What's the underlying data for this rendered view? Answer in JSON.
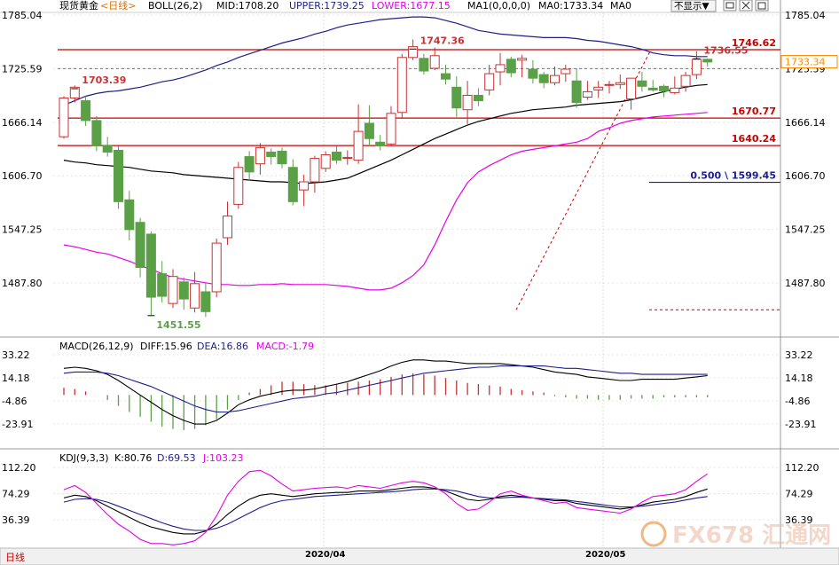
{
  "header": {
    "symbol": "现货黄金",
    "period": "<日线>",
    "boll_label": "BOLL(26,2)",
    "mid": "MID:1708.20",
    "upper": "UPPER:1739.25",
    "lower": "LOWER:1677.15",
    "ma1": "MA1(0,0,0,0)",
    "ma0": "MA0:1733.34",
    "ma0b": "MA0",
    "display_toggle": "不显示▼",
    "window_icons": [
      "restore-icon",
      "close-icon",
      "maximize-icon"
    ]
  },
  "macd_header": {
    "label": "MACD(26,12,9)",
    "diff": "DIFF:15.96",
    "dea": "DEA:16.86",
    "macd": "MACD:-1.79"
  },
  "kdj_header": {
    "label": "KDJ(9,3,3)",
    "k": "K:80.76",
    "d": "D:69.53",
    "j": "J:103.23"
  },
  "footer": {
    "period_label": "日线",
    "date_ticks": [
      "2020/04",
      "2020/05"
    ],
    "watermark": "FX678 汇通网"
  },
  "colors": {
    "up": "#c83232",
    "down": "#5aa046",
    "mid_line": "#000000",
    "upper_line": "#1e1e8c",
    "lower_line": "#e600e6",
    "ma_line": "#000000",
    "hline": "#c80000",
    "price_label_box": "#ff8c00"
  },
  "chart_data": [
    {
      "type": "candlestick",
      "name": "price",
      "y_ticks": [
        "1785.04",
        "1725.59",
        "1666.14",
        "1606.70",
        "1547.25",
        "1487.80"
      ],
      "y_tick_values": [
        1785.04,
        1725.59,
        1666.14,
        1606.7,
        1547.25,
        1487.8
      ],
      "ylim": [
        1430,
        1800
      ],
      "current_price_label": "1733.34",
      "current_price": 1733.34,
      "candles": [
        [
          1650,
          1693,
          1648,
          1695
        ],
        [
          1693,
          1705,
          1688,
          1707
        ],
        [
          1690,
          1668,
          1662,
          1695
        ],
        [
          1668,
          1640,
          1634,
          1673
        ],
        [
          1640,
          1633,
          1628,
          1650
        ],
        [
          1635,
          1578,
          1570,
          1640
        ],
        [
          1580,
          1547,
          1535,
          1590
        ],
        [
          1555,
          1505,
          1494,
          1560
        ],
        [
          1542,
          1472,
          1452,
          1545
        ],
        [
          1498,
          1473,
          1466,
          1512
        ],
        [
          1465,
          1495,
          1460,
          1503
        ],
        [
          1489,
          1470,
          1458,
          1494
        ],
        [
          1460,
          1487,
          1455,
          1500
        ],
        [
          1478,
          1456,
          1450,
          1488
        ],
        [
          1478,
          1532,
          1472,
          1537
        ],
        [
          1538,
          1562,
          1530,
          1578
        ],
        [
          1575,
          1616,
          1570,
          1622
        ],
        [
          1628,
          1611,
          1601,
          1634
        ],
        [
          1620,
          1638,
          1608,
          1643
        ],
        [
          1633,
          1628,
          1619,
          1637
        ],
        [
          1634,
          1620,
          1615,
          1638
        ],
        [
          1616,
          1578,
          1574,
          1625
        ],
        [
          1591,
          1600,
          1573,
          1608
        ],
        [
          1600,
          1626,
          1588,
          1629
        ],
        [
          1615,
          1630,
          1611,
          1634
        ],
        [
          1633,
          1624,
          1620,
          1640
        ],
        [
          1627,
          1627,
          1619,
          1635
        ],
        [
          1624,
          1656,
          1620,
          1686
        ],
        [
          1665,
          1648,
          1640,
          1685
        ],
        [
          1644,
          1640,
          1635,
          1652
        ],
        [
          1642,
          1676,
          1640,
          1684
        ],
        [
          1677,
          1738,
          1670,
          1742
        ],
        [
          1738,
          1750,
          1735,
          1758
        ],
        [
          1737,
          1723,
          1719,
          1742
        ],
        [
          1726,
          1740,
          1724,
          1749
        ],
        [
          1720,
          1714,
          1708,
          1730
        ],
        [
          1705,
          1682,
          1672,
          1717
        ],
        [
          1680,
          1696,
          1664,
          1712
        ],
        [
          1696,
          1690,
          1684,
          1704
        ],
        [
          1702,
          1720,
          1696,
          1730
        ],
        [
          1722,
          1730,
          1707,
          1743
        ],
        [
          1736,
          1721,
          1716,
          1739
        ],
        [
          1735,
          1737,
          1716,
          1741
        ],
        [
          1725,
          1715,
          1709,
          1735
        ],
        [
          1719,
          1710,
          1704,
          1722
        ],
        [
          1710,
          1718,
          1707,
          1728
        ],
        [
          1720,
          1725,
          1711,
          1730
        ],
        [
          1712,
          1688,
          1682,
          1726
        ],
        [
          1694,
          1700,
          1691,
          1712
        ],
        [
          1702,
          1705,
          1693,
          1712
        ],
        [
          1708,
          1708,
          1698,
          1712
        ],
        [
          1708,
          1710,
          1703,
          1719
        ],
        [
          1692,
          1715,
          1680,
          1715
        ],
        [
          1712,
          1706,
          1700,
          1722
        ],
        [
          1704,
          1702,
          1700,
          1713
        ],
        [
          1706,
          1701,
          1694,
          1708
        ],
        [
          1699,
          1704,
          1697,
          1717
        ],
        [
          1706,
          1718,
          1700,
          1722
        ],
        [
          1719,
          1736,
          1714,
          1745
        ],
        [
          1736,
          1733,
          1728,
          1737
        ]
      ],
      "boll_mid": [
        1624,
        1622,
        1621,
        1619,
        1618,
        1617,
        1616,
        1614,
        1612,
        1611,
        1610,
        1608,
        1607,
        1606,
        1605,
        1604,
        1603,
        1602,
        1601,
        1600,
        1600,
        1599,
        1598,
        1599,
        1600,
        1602,
        1604,
        1609,
        1614,
        1619,
        1624,
        1630,
        1636,
        1642,
        1648,
        1653,
        1658,
        1663,
        1667,
        1670,
        1673,
        1676,
        1678,
        1680,
        1681,
        1682,
        1683,
        1685,
        1686,
        1687,
        1688,
        1689,
        1691,
        1694,
        1697,
        1700,
        1703,
        1705,
        1707,
        1708
      ],
      "boll_upper": [
        1685,
        1690,
        1695,
        1698,
        1700,
        1701,
        1703,
        1705,
        1708,
        1711,
        1713,
        1716,
        1720,
        1724,
        1729,
        1733,
        1738,
        1742,
        1746,
        1750,
        1754,
        1757,
        1760,
        1764,
        1767,
        1771,
        1774,
        1776,
        1778,
        1780,
        1781,
        1782,
        1783,
        1783,
        1782,
        1779,
        1776,
        1772,
        1768,
        1766,
        1764,
        1763,
        1762,
        1761,
        1760,
        1760,
        1760,
        1759,
        1757,
        1756,
        1754,
        1752,
        1750,
        1747,
        1743,
        1741,
        1740,
        1740,
        1739,
        1739
      ],
      "boll_lower": [
        1530,
        1528,
        1525,
        1522,
        1520,
        1516,
        1512,
        1507,
        1503,
        1498,
        1494,
        1492,
        1490,
        1488,
        1486,
        1486,
        1485,
        1485,
        1486,
        1486,
        1487,
        1486,
        1486,
        1486,
        1486,
        1485,
        1484,
        1482,
        1480,
        1480,
        1482,
        1488,
        1496,
        1508,
        1530,
        1556,
        1580,
        1599,
        1611,
        1618,
        1624,
        1630,
        1634,
        1636,
        1638,
        1640,
        1642,
        1644,
        1648,
        1656,
        1660,
        1665,
        1668,
        1670,
        1672,
        1673,
        1674,
        1675,
        1676,
        1677
      ],
      "hlines": [
        {
          "label": "1746.62",
          "value": 1746.62,
          "style": "solid"
        },
        {
          "label": "1670.77",
          "value": 1670.77,
          "style": "solid"
        },
        {
          "label": "1640.24",
          "value": 1640.24,
          "style": "solid"
        },
        {
          "label": "0.500 \\ 1599.45",
          "value": 1599.45,
          "style": "fib"
        },
        {
          "label": "",
          "value": 1725.59,
          "style": "dashed-cyan"
        },
        {
          "label": "",
          "value": 1458,
          "style": "dotted"
        }
      ],
      "annotations": [
        {
          "label": "1703.39",
          "index": 1,
          "value": 1703.39
        },
        {
          "label": "1747.36",
          "index": 32,
          "value": 1747.36
        },
        {
          "label": "1736.55",
          "index": 58,
          "value": 1736.55
        },
        {
          "label": "1451.55",
          "index": 8,
          "value": 1451.55
        }
      ]
    },
    {
      "type": "bar+line",
      "name": "MACD",
      "y_ticks": [
        "33.22",
        "14.18",
        "-4.86",
        "-23.91"
      ],
      "y_tick_values": [
        33.22,
        14.18,
        -4.86,
        -23.91
      ],
      "ylim": [
        -40,
        45
      ],
      "hist": [
        6,
        5,
        3,
        0,
        -4,
        -9,
        -14,
        -18,
        -22,
        -26,
        -28,
        -29,
        -28,
        -25,
        -20,
        -12,
        -4,
        2,
        5,
        8,
        11,
        11,
        9,
        8,
        8,
        9,
        10,
        11,
        12,
        13,
        15,
        17,
        18,
        17,
        16,
        14,
        12,
        10,
        9,
        8,
        7,
        5,
        4,
        3,
        2,
        -1,
        -2,
        -3,
        -3,
        -4,
        -4,
        -4,
        -3,
        -3,
        -3,
        -2,
        -2,
        -2,
        -2,
        -2
      ],
      "diff": [
        22,
        23,
        22,
        20,
        17,
        12,
        6,
        0,
        -6,
        -12,
        -17,
        -21,
        -24,
        -24,
        -21,
        -15,
        -8,
        -4,
        -1,
        1,
        3,
        4,
        4,
        5,
        7,
        9,
        11,
        14,
        17,
        20,
        24,
        27,
        29,
        29,
        28,
        28,
        27,
        26,
        26,
        26,
        26,
        25,
        24,
        23,
        21,
        19,
        18,
        17,
        15,
        14,
        13,
        12,
        12,
        13,
        13,
        13,
        13,
        14,
        15,
        16
      ],
      "dea": [
        18,
        19,
        19,
        19,
        18,
        16,
        13,
        10,
        7,
        3,
        -1,
        -5,
        -9,
        -12,
        -14,
        -14,
        -13,
        -11,
        -9,
        -7,
        -5,
        -3,
        -2,
        -1,
        1,
        2,
        4,
        6,
        8,
        10,
        12,
        14,
        16,
        18,
        19,
        20,
        21,
        22,
        23,
        23,
        24,
        24,
        24,
        24,
        24,
        23,
        22,
        22,
        21,
        20,
        19,
        18,
        18,
        17,
        17,
        17,
        17,
        17,
        17,
        17
      ]
    },
    {
      "type": "line",
      "name": "KDJ",
      "y_ticks": [
        "112.20",
        "74.29",
        "36.39"
      ],
      "y_tick_values": [
        112.2,
        74.29,
        36.39
      ],
      "ylim": [
        0,
        125
      ],
      "k": [
        68,
        72,
        70,
        64,
        56,
        48,
        40,
        32,
        26,
        22,
        18,
        16,
        16,
        20,
        30,
        44,
        56,
        66,
        72,
        74,
        72,
        70,
        72,
        74,
        75,
        76,
        76,
        78,
        78,
        78,
        80,
        82,
        84,
        84,
        82,
        78,
        72,
        66,
        64,
        66,
        70,
        72,
        70,
        68,
        66,
        64,
        64,
        60,
        58,
        56,
        54,
        52,
        54,
        58,
        62,
        64,
        66,
        70,
        76,
        81
      ],
      "d": [
        62,
        66,
        67,
        66,
        62,
        56,
        50,
        44,
        38,
        32,
        27,
        23,
        21,
        21,
        24,
        30,
        38,
        46,
        54,
        60,
        64,
        66,
        68,
        70,
        71,
        72,
        73,
        74,
        75,
        76,
        77,
        78,
        80,
        81,
        81,
        80,
        78,
        74,
        70,
        68,
        68,
        69,
        69,
        68,
        67,
        66,
        65,
        63,
        61,
        59,
        57,
        55,
        55,
        56,
        58,
        60,
        62,
        65,
        68,
        70
      ],
      "j": [
        80,
        86,
        76,
        60,
        44,
        30,
        20,
        8,
        2,
        2,
        0,
        2,
        6,
        18,
        42,
        72,
        92,
        106,
        108,
        100,
        88,
        78,
        80,
        82,
        83,
        84,
        82,
        86,
        84,
        82,
        86,
        90,
        92,
        90,
        84,
        74,
        60,
        50,
        52,
        62,
        74,
        78,
        72,
        68,
        64,
        60,
        62,
        54,
        52,
        50,
        48,
        46,
        52,
        62,
        70,
        72,
        74,
        80,
        92,
        103
      ]
    }
  ]
}
